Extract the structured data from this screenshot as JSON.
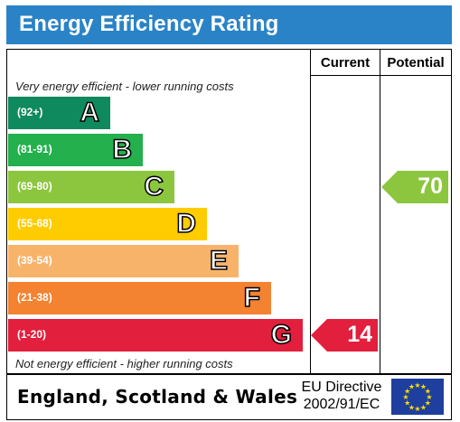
{
  "title": "Energy Efficiency Rating",
  "columns": {
    "current": "Current",
    "potential": "Potential"
  },
  "captions": {
    "top": "Very energy efficient - lower running costs",
    "bottom": "Not energy efficient - higher running costs"
  },
  "bands": [
    {
      "range": "(92+)",
      "letter": "A",
      "color": "#0f8a5e"
    },
    {
      "range": "(81-91)",
      "letter": "B",
      "color": "#23b04d"
    },
    {
      "range": "(69-80)",
      "letter": "C",
      "color": "#8cc63e"
    },
    {
      "range": "(55-68)",
      "letter": "D",
      "color": "#ffcc00"
    },
    {
      "range": "(39-54)",
      "letter": "E",
      "color": "#f8b36b"
    },
    {
      "range": "(21-38)",
      "letter": "F",
      "color": "#f38231"
    },
    {
      "range": "(1-20)",
      "letter": "G",
      "color": "#e21f3d"
    }
  ],
  "current": {
    "value": "14",
    "band": "G",
    "color": "#e21f3d"
  },
  "potential": {
    "value": "70",
    "band": "C",
    "color": "#8cc63e"
  },
  "footer": {
    "country": "England, Scotland & Wales",
    "directive_line1": "EU Directive",
    "directive_line2": "2002/91/EC"
  },
  "icons": {
    "flag": "eu-flag-icon"
  }
}
